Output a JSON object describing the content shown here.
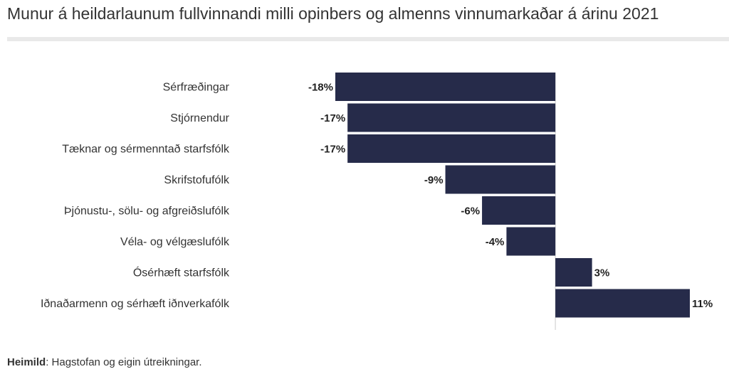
{
  "title": "Munur á heildarlaunum fullvinnandi milli opinbers og almenns vinnumarkaðar á árinu 2021",
  "source": {
    "label": "Heimild",
    "text": ": Hagstofan og eigin útreikningar."
  },
  "colors": {
    "bar": "#262b4a",
    "zero_line": "#cccccc"
  },
  "chart_data": {
    "type": "bar",
    "orientation": "horizontal",
    "categories": [
      "Sérfræðingar",
      "Stjórnendur",
      "Tæknar og sérmenntað starfsfólk",
      "Skrifstofufólk",
      "Þjónustu-, sölu- og afgreiðslufólk",
      "Véla- og vélgæslufólk",
      "Ósérhæft starfsfólk",
      "Iðnaðarmenn og sérhæft iðnverkafólk"
    ],
    "values": [
      -18,
      -17,
      -17,
      -9,
      -6,
      -4,
      3,
      11
    ],
    "data_labels": [
      "-18%",
      "-17%",
      "-17%",
      "-9%",
      "-6%",
      "-4%",
      "3%",
      "11%"
    ],
    "unit": "%",
    "xlim": [
      -18,
      11
    ]
  }
}
